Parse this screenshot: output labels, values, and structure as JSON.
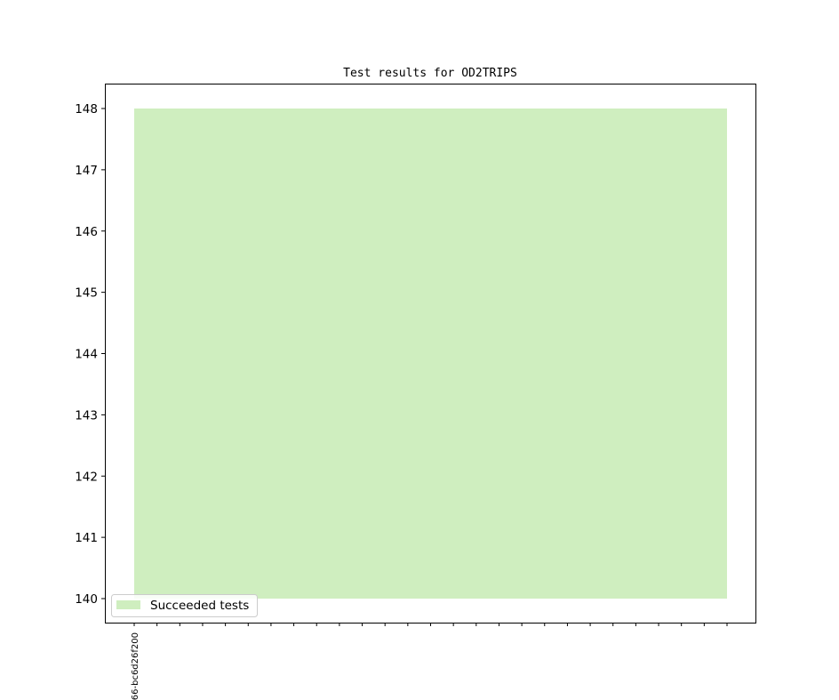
{
  "chart_data": {
    "type": "area",
    "title": "Test results for OD2TRIPS",
    "xlabel": "",
    "ylabel": "",
    "x_tick_count": 27,
    "x_tick_labels": [
      "66-bc6d26f200"
    ],
    "ylim": [
      139.6,
      148.4
    ],
    "y_ticks": [
      140,
      141,
      142,
      143,
      144,
      145,
      146,
      147,
      148
    ],
    "grid": false,
    "legend_position": "lower-left",
    "series": [
      {
        "name": "Succeeded tests",
        "color": "#cfeebf",
        "lower": 140,
        "upper": 148,
        "values": [
          148,
          148,
          148,
          148,
          148,
          148,
          148,
          148,
          148,
          148,
          148,
          148,
          148,
          148,
          148,
          148,
          148,
          148,
          148,
          148,
          148,
          148,
          148,
          148,
          148,
          148,
          148
        ]
      }
    ]
  }
}
